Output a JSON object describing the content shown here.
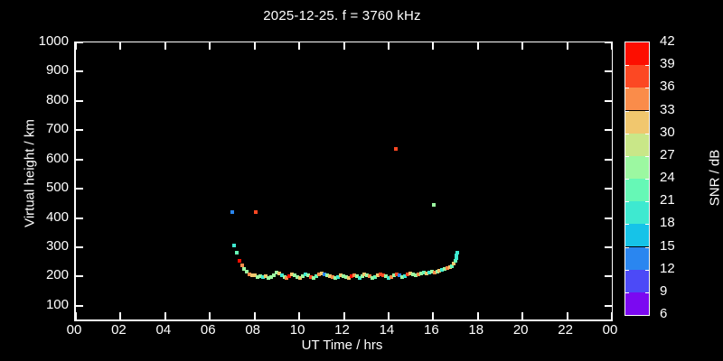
{
  "title": "2025-12-25. f = 3760 kHz",
  "axes": {
    "x_label": "UT Time / hrs",
    "y_label": "Virtual height / km",
    "x_tick_labels": [
      "00",
      "02",
      "04",
      "06",
      "08",
      "10",
      "12",
      "14",
      "16",
      "18",
      "20",
      "22",
      "00"
    ],
    "x_tick_values": [
      0,
      2,
      4,
      6,
      8,
      10,
      12,
      14,
      16,
      18,
      20,
      22,
      24
    ],
    "y_tick_values": [
      100,
      200,
      300,
      400,
      500,
      600,
      700,
      800,
      900,
      1000
    ]
  },
  "colorbar": {
    "label": "SNR / dB",
    "tick_values": [
      6,
      9,
      12,
      15,
      18,
      21,
      24,
      27,
      30,
      33,
      36,
      39,
      42
    ],
    "bands": [
      {
        "min": 6,
        "max": 9,
        "color": "#7b09f1"
      },
      {
        "min": 9,
        "max": 12,
        "color": "#4c4af7"
      },
      {
        "min": 12,
        "max": 15,
        "color": "#2a86f0"
      },
      {
        "min": 15,
        "max": 18,
        "color": "#16c3e8"
      },
      {
        "min": 18,
        "max": 21,
        "color": "#3ee9d0"
      },
      {
        "min": 21,
        "max": 24,
        "color": "#66f8b6"
      },
      {
        "min": 24,
        "max": 27,
        "color": "#9cf8a1"
      },
      {
        "min": 27,
        "max": 30,
        "color": "#c9e788"
      },
      {
        "min": 30,
        "max": 33,
        "color": "#f1c76e"
      },
      {
        "min": 33,
        "max": 36,
        "color": "#fa8c4a"
      },
      {
        "min": 36,
        "max": 39,
        "color": "#fc4823"
      },
      {
        "min": 39,
        "max": 42,
        "color": "#fd0e00"
      }
    ]
  },
  "chart_data": {
    "type": "scatter",
    "title": "2025-12-25. f = 3760 kHz",
    "xlabel": "UT Time / hrs",
    "ylabel": "Virtual height / km",
    "zlabel": "SNR / dB",
    "xlim": [
      0,
      24
    ],
    "ylim": [
      53,
      1000
    ],
    "zlim": [
      6,
      42
    ],
    "grid": false,
    "legend": "colorbar-right",
    "point_format": [
      "time_hr",
      "height_km",
      "snr_db"
    ],
    "points": [
      [
        7.0,
        420,
        13
      ],
      [
        8.06,
        420,
        37
      ],
      [
        14.33,
        637,
        37
      ],
      [
        16.03,
        446,
        25
      ],
      [
        7.09,
        306,
        19
      ],
      [
        7.21,
        282,
        23
      ],
      [
        7.33,
        254,
        40
      ],
      [
        7.45,
        239,
        34
      ],
      [
        7.53,
        226,
        25
      ],
      [
        7.65,
        217,
        26
      ],
      [
        7.77,
        208,
        33
      ],
      [
        7.89,
        205,
        31
      ],
      [
        8.01,
        205,
        30
      ],
      [
        8.13,
        199,
        25
      ],
      [
        8.25,
        202,
        24
      ],
      [
        8.37,
        199,
        19
      ],
      [
        8.49,
        202,
        31
      ],
      [
        8.61,
        196,
        25
      ],
      [
        8.73,
        199,
        24
      ],
      [
        8.85,
        205,
        26
      ],
      [
        8.97,
        214,
        24
      ],
      [
        9.09,
        211,
        31
      ],
      [
        9.21,
        205,
        19
      ],
      [
        9.33,
        199,
        24
      ],
      [
        9.45,
        196,
        34
      ],
      [
        9.57,
        202,
        40
      ],
      [
        9.69,
        208,
        31
      ],
      [
        9.81,
        205,
        25
      ],
      [
        9.93,
        199,
        24
      ],
      [
        10.05,
        196,
        31
      ],
      [
        10.17,
        202,
        26
      ],
      [
        10.29,
        208,
        19
      ],
      [
        10.41,
        205,
        24
      ],
      [
        10.53,
        199,
        38
      ],
      [
        10.65,
        196,
        25
      ],
      [
        10.77,
        202,
        23
      ],
      [
        10.89,
        208,
        34
      ],
      [
        11.01,
        211,
        31
      ],
      [
        11.13,
        208,
        14
      ],
      [
        11.25,
        205,
        24
      ],
      [
        11.37,
        202,
        31
      ],
      [
        11.49,
        199,
        34
      ],
      [
        11.61,
        196,
        25
      ],
      [
        11.73,
        199,
        19
      ],
      [
        11.85,
        205,
        31
      ],
      [
        11.97,
        202,
        24
      ],
      [
        12.09,
        199,
        26
      ],
      [
        12.21,
        196,
        31
      ],
      [
        12.33,
        202,
        40
      ],
      [
        12.45,
        205,
        34
      ],
      [
        12.57,
        202,
        24
      ],
      [
        12.69,
        196,
        19
      ],
      [
        12.81,
        202,
        25
      ],
      [
        12.93,
        208,
        31
      ],
      [
        13.05,
        205,
        24
      ],
      [
        13.17,
        202,
        34
      ],
      [
        13.29,
        196,
        26
      ],
      [
        13.41,
        199,
        23
      ],
      [
        13.53,
        205,
        31
      ],
      [
        13.65,
        208,
        38
      ],
      [
        13.77,
        205,
        37
      ],
      [
        13.89,
        202,
        24
      ],
      [
        14.01,
        196,
        19
      ],
      [
        14.13,
        199,
        34
      ],
      [
        14.25,
        205,
        25
      ],
      [
        14.37,
        208,
        38
      ],
      [
        14.49,
        205,
        14
      ],
      [
        14.61,
        199,
        24
      ],
      [
        14.73,
        202,
        19
      ],
      [
        14.85,
        208,
        37
      ],
      [
        14.97,
        211,
        31
      ],
      [
        15.09,
        208,
        25
      ],
      [
        15.21,
        205,
        24
      ],
      [
        15.33,
        208,
        34
      ],
      [
        15.45,
        211,
        26
      ],
      [
        15.57,
        214,
        23
      ],
      [
        15.69,
        211,
        31
      ],
      [
        15.81,
        214,
        19
      ],
      [
        15.93,
        217,
        24
      ],
      [
        16.05,
        214,
        34
      ],
      [
        16.17,
        217,
        25
      ],
      [
        16.29,
        220,
        31
      ],
      [
        16.41,
        223,
        19
      ],
      [
        16.53,
        226,
        24
      ],
      [
        16.65,
        229,
        34
      ],
      [
        16.77,
        232,
        31
      ],
      [
        16.85,
        236,
        23
      ],
      [
        16.93,
        244,
        31
      ],
      [
        16.99,
        252,
        22
      ],
      [
        17.03,
        262,
        19
      ],
      [
        17.05,
        272,
        18
      ],
      [
        17.08,
        281,
        18
      ]
    ]
  }
}
